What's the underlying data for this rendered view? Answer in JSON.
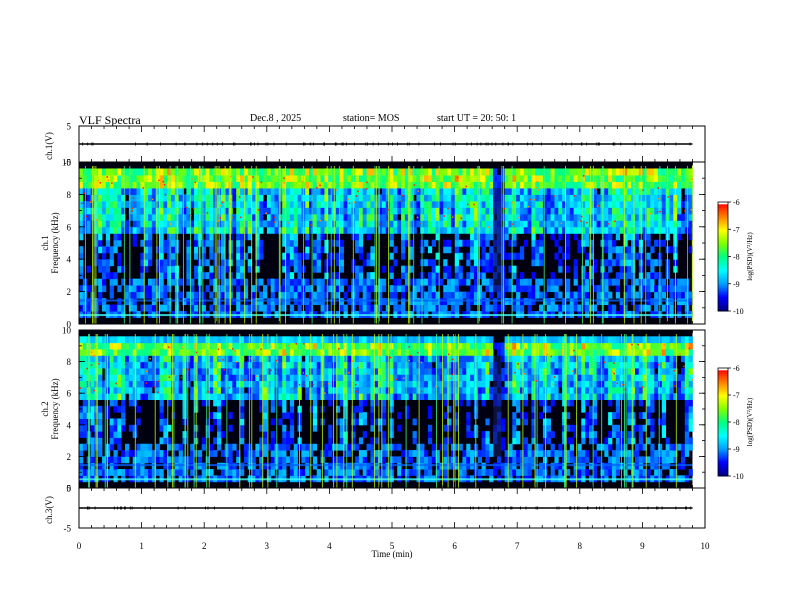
{
  "header": {
    "title": "VLF Spectra",
    "date": "Dec.8 , 2025",
    "station": "station= MOS",
    "start": "start UT = 20: 50: 1"
  },
  "chart_data": {
    "type": "heatmap",
    "title": "VLF Spectra",
    "xlabel": "Time (min)",
    "xlim": [
      0,
      10
    ],
    "x_ticks": [
      "0",
      "1",
      "2",
      "3",
      "4",
      "5",
      "6",
      "7",
      "8",
      "9",
      "10"
    ],
    "data_end_min": 9.8,
    "panels": [
      {
        "name": "ch1-voltage",
        "type": "line",
        "ylabel": "ch.1(V)",
        "ylim": [
          -5,
          5
        ],
        "y_ticks": [
          "5",
          "-5"
        ],
        "value": 0
      },
      {
        "name": "ch1-spectrogram",
        "type": "heatmap",
        "ylabel": "ch.1",
        "ylabel2": "Frequency (kHz)",
        "ylim": [
          0,
          10
        ],
        "y_ticks": [
          "10",
          "8",
          "6",
          "4",
          "2",
          "0"
        ],
        "colorbar": {
          "label": "log(PSD)(V²/Hz)",
          "range": [
            -10,
            -6
          ],
          "ticks": [
            "-6",
            "-7",
            "-8",
            "-9",
            "-10"
          ]
        },
        "gap_min": [
          6.62,
          6.75
        ]
      },
      {
        "name": "ch2-spectrogram",
        "type": "heatmap",
        "ylabel": "ch.2",
        "ylabel2": "Frequency (kHz)",
        "ylim": [
          0,
          10
        ],
        "y_ticks": [
          "10",
          "8",
          "6",
          "4",
          "2",
          "0"
        ],
        "colorbar": {
          "label": "log(PSD)(V²/Hz)",
          "range": [
            -10,
            -6
          ],
          "ticks": [
            "-6",
            "-7",
            "-8",
            "-9",
            "-10"
          ]
        },
        "gap_min": [
          6.62,
          6.75
        ]
      },
      {
        "name": "ch3-voltage",
        "type": "line",
        "ylabel": "ch.3(V)",
        "ylim": [
          -5,
          5
        ],
        "y_ticks": [
          "5",
          "-5"
        ],
        "value": 0
      }
    ],
    "colorscale": [
      "#000080",
      "#0000ff",
      "#00a0ff",
      "#00ffff",
      "#00ff80",
      "#80ff00",
      "#ffff00",
      "#ff8000",
      "#ff0000",
      "#ffffff"
    ]
  }
}
